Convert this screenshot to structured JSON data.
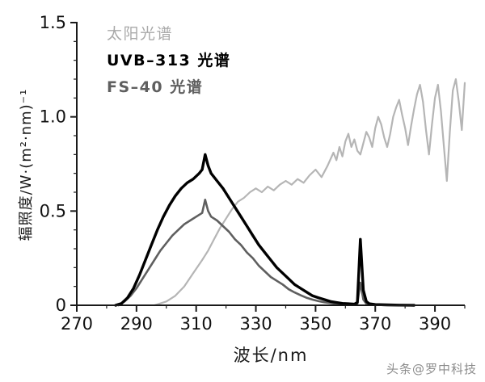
{
  "figure": {
    "background": "#ffffff"
  },
  "watermark": {
    "text": "头条@罗中科技"
  },
  "legend": {
    "items": [
      {
        "label": "太阳光谱",
        "color": "#a9a9a9"
      },
      {
        "label": "UVB–313 光谱",
        "color": "#000000"
      },
      {
        "label": "FS–40 光谱",
        "color": "#5f5f5f"
      }
    ]
  },
  "chart_data": {
    "type": "line",
    "title": "",
    "xlabel": "波长/nm",
    "ylabel": "辐照度/W·(m²·nm)⁻¹",
    "xlim": [
      270,
      400
    ],
    "ylim": [
      0,
      1.5
    ],
    "xticks": [
      270,
      290,
      310,
      330,
      350,
      370,
      390
    ],
    "ytick_labels": [
      "0",
      "0.5",
      "1.0",
      "1.5"
    ],
    "x_minor_step": 10,
    "y_minor_step": 0.1,
    "grid": false,
    "legend_position": "top-left-inside",
    "axis_color": "#1a1a1a",
    "series": [
      {
        "name": "太阳光谱",
        "color": "#b5b5b5",
        "width": 2.2,
        "points": [
          [
            296,
            0
          ],
          [
            300,
            0.02
          ],
          [
            303,
            0.05
          ],
          [
            306,
            0.1
          ],
          [
            309,
            0.17
          ],
          [
            312,
            0.24
          ],
          [
            314,
            0.29
          ],
          [
            316,
            0.35
          ],
          [
            318,
            0.41
          ],
          [
            320,
            0.46
          ],
          [
            322,
            0.51
          ],
          [
            324,
            0.55
          ],
          [
            326,
            0.57
          ],
          [
            328,
            0.6
          ],
          [
            330,
            0.62
          ],
          [
            332,
            0.6
          ],
          [
            334,
            0.63
          ],
          [
            336,
            0.61
          ],
          [
            338,
            0.64
          ],
          [
            340,
            0.66
          ],
          [
            342,
            0.64
          ],
          [
            344,
            0.67
          ],
          [
            346,
            0.65
          ],
          [
            348,
            0.69
          ],
          [
            350,
            0.72
          ],
          [
            352,
            0.68
          ],
          [
            354,
            0.74
          ],
          [
            356,
            0.81
          ],
          [
            357,
            0.77
          ],
          [
            358,
            0.84
          ],
          [
            359,
            0.79
          ],
          [
            360,
            0.87
          ],
          [
            361,
            0.91
          ],
          [
            362,
            0.84
          ],
          [
            363,
            0.88
          ],
          [
            364,
            0.82
          ],
          [
            365,
            0.8
          ],
          [
            366,
            0.86
          ],
          [
            367,
            0.92
          ],
          [
            368,
            0.89
          ],
          [
            369,
            0.84
          ],
          [
            370,
            0.94
          ],
          [
            371,
            1.0
          ],
          [
            372,
            0.96
          ],
          [
            373,
            0.89
          ],
          [
            374,
            0.84
          ],
          [
            375,
            0.91
          ],
          [
            376,
            1.0
          ],
          [
            377,
            1.05
          ],
          [
            378,
            1.09
          ],
          [
            379,
            1.01
          ],
          [
            380,
            0.94
          ],
          [
            381,
            0.85
          ],
          [
            382,
            0.95
          ],
          [
            383,
            1.04
          ],
          [
            384,
            1.12
          ],
          [
            385,
            1.17
          ],
          [
            386,
            1.08
          ],
          [
            387,
            0.93
          ],
          [
            388,
            0.8
          ],
          [
            389,
            0.96
          ],
          [
            390,
            1.1
          ],
          [
            391,
            1.17
          ],
          [
            392,
            1.03
          ],
          [
            393,
            0.84
          ],
          [
            394,
            0.66
          ],
          [
            395,
            0.92
          ],
          [
            396,
            1.14
          ],
          [
            397,
            1.2
          ],
          [
            398,
            1.08
          ],
          [
            399,
            0.93
          ],
          [
            400,
            1.18
          ]
        ]
      },
      {
        "name": "FS–40 光谱",
        "color": "#5f5f5f",
        "width": 2.6,
        "points": [
          [
            284,
            0
          ],
          [
            286,
            0.02
          ],
          [
            288,
            0.05
          ],
          [
            290,
            0.09
          ],
          [
            292,
            0.14
          ],
          [
            294,
            0.19
          ],
          [
            296,
            0.24
          ],
          [
            298,
            0.29
          ],
          [
            300,
            0.33
          ],
          [
            302,
            0.37
          ],
          [
            304,
            0.4
          ],
          [
            306,
            0.43
          ],
          [
            308,
            0.45
          ],
          [
            310,
            0.47
          ],
          [
            312,
            0.49
          ],
          [
            313,
            0.56
          ],
          [
            314,
            0.5
          ],
          [
            315,
            0.47
          ],
          [
            317,
            0.45
          ],
          [
            319,
            0.42
          ],
          [
            321,
            0.39
          ],
          [
            323,
            0.35
          ],
          [
            325,
            0.32
          ],
          [
            327,
            0.28
          ],
          [
            329,
            0.25
          ],
          [
            331,
            0.21
          ],
          [
            333,
            0.18
          ],
          [
            335,
            0.15
          ],
          [
            337,
            0.13
          ],
          [
            339,
            0.11
          ],
          [
            341,
            0.085
          ],
          [
            343,
            0.068
          ],
          [
            345,
            0.053
          ],
          [
            347,
            0.04
          ],
          [
            349,
            0.03
          ],
          [
            351,
            0.022
          ],
          [
            353,
            0.016
          ],
          [
            355,
            0.012
          ],
          [
            357,
            0.008
          ],
          [
            359,
            0.006
          ],
          [
            361,
            0.004
          ],
          [
            363,
            0.003
          ],
          [
            364,
            0.008
          ],
          [
            365,
            0.12
          ],
          [
            366,
            0.03
          ],
          [
            367,
            0.008
          ],
          [
            369,
            0.003
          ],
          [
            373,
            0.001
          ],
          [
            378,
            0
          ]
        ]
      },
      {
        "name": "UVB–313 光谱",
        "color": "#000000",
        "width": 3.4,
        "points": [
          [
            283,
            0
          ],
          [
            285,
            0.01
          ],
          [
            287,
            0.04
          ],
          [
            289,
            0.09
          ],
          [
            291,
            0.16
          ],
          [
            293,
            0.24
          ],
          [
            295,
            0.32
          ],
          [
            297,
            0.4
          ],
          [
            299,
            0.47
          ],
          [
            301,
            0.53
          ],
          [
            303,
            0.58
          ],
          [
            305,
            0.62
          ],
          [
            307,
            0.65
          ],
          [
            309,
            0.67
          ],
          [
            311,
            0.7
          ],
          [
            312,
            0.72
          ],
          [
            313,
            0.8
          ],
          [
            314,
            0.74
          ],
          [
            315,
            0.7
          ],
          [
            317,
            0.66
          ],
          [
            319,
            0.62
          ],
          [
            321,
            0.57
          ],
          [
            323,
            0.52
          ],
          [
            325,
            0.47
          ],
          [
            327,
            0.42
          ],
          [
            329,
            0.37
          ],
          [
            331,
            0.32
          ],
          [
            333,
            0.28
          ],
          [
            335,
            0.24
          ],
          [
            337,
            0.2
          ],
          [
            339,
            0.17
          ],
          [
            341,
            0.14
          ],
          [
            343,
            0.11
          ],
          [
            345,
            0.09
          ],
          [
            347,
            0.07
          ],
          [
            349,
            0.05
          ],
          [
            351,
            0.04
          ],
          [
            353,
            0.03
          ],
          [
            355,
            0.02
          ],
          [
            357,
            0.015
          ],
          [
            359,
            0.01
          ],
          [
            361,
            0.008
          ],
          [
            363,
            0.006
          ],
          [
            364,
            0.015
          ],
          [
            365,
            0.35
          ],
          [
            366,
            0.08
          ],
          [
            367,
            0.02
          ],
          [
            368,
            0.008
          ],
          [
            370,
            0.004
          ],
          [
            374,
            0.002
          ],
          [
            378,
            0.001
          ],
          [
            383,
            0
          ]
        ]
      }
    ]
  }
}
